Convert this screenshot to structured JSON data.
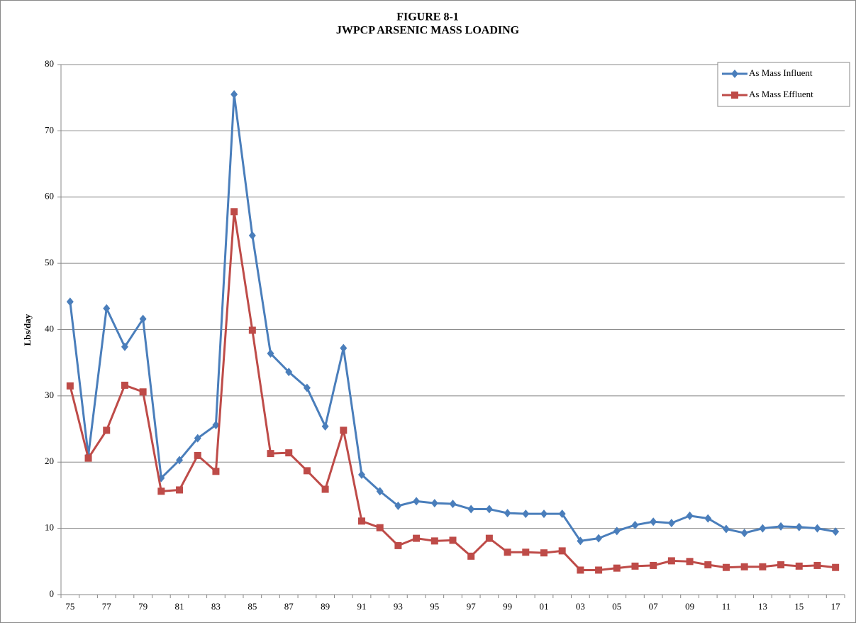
{
  "chart_data": {
    "type": "line",
    "title": "FIGURE 8-1",
    "subtitle": "JWPCP ARSENIC MASS LOADING",
    "y_label": "Lbs/day",
    "categories": [
      "75",
      null,
      "77",
      null,
      "79",
      null,
      "81",
      null,
      "83",
      null,
      "85",
      null,
      "87",
      null,
      "89",
      null,
      "91",
      null,
      "93",
      null,
      "95",
      null,
      "97",
      null,
      "99",
      null,
      "01",
      null,
      "03",
      null,
      "05",
      null,
      "07",
      null,
      "09",
      null,
      "11",
      null,
      "13",
      null,
      "15",
      null,
      "17"
    ],
    "series": [
      {
        "name": "As Mass Influent",
        "color": "#4a7ebb",
        "marker": "diamond",
        "values": [
          44.2,
          21,
          43.2,
          37.4,
          41.6,
          17.6,
          20.3,
          23.6,
          25.6,
          75.5,
          54.2,
          36.4,
          33.6,
          31.2,
          25.4,
          37.2,
          18.1,
          15.6,
          13.4,
          14.1,
          13.8,
          13.7,
          12.9,
          12.9,
          12.3,
          12.2,
          12.2,
          12.2,
          8.1,
          8.5,
          9.6,
          10.5,
          11.0,
          10.8,
          11.9,
          11.5,
          9.9,
          9.3,
          10.0,
          10.3,
          10.2,
          10.0,
          9.5
        ]
      },
      {
        "name": "As Mass Effluent",
        "color": "#be4b48",
        "marker": "square",
        "values": [
          31.5,
          20.6,
          24.8,
          31.6,
          30.6,
          15.6,
          15.8,
          21.0,
          18.6,
          57.8,
          39.9,
          21.3,
          21.4,
          18.7,
          15.9,
          24.8,
          11.1,
          10.1,
          7.4,
          8.5,
          8.1,
          8.2,
          5.8,
          8.5,
          6.4,
          6.4,
          6.3,
          6.6,
          3.7,
          3.7,
          4.0,
          4.3,
          4.4,
          5.1,
          5.0,
          4.5,
          4.1,
          4.2,
          4.2,
          4.5,
          4.3,
          4.4,
          4.1
        ]
      }
    ],
    "ylim": [
      0,
      80
    ],
    "yticks": [
      0,
      10,
      20,
      30,
      40,
      50,
      60,
      70,
      80
    ],
    "grid": true,
    "legend": "top-right"
  }
}
